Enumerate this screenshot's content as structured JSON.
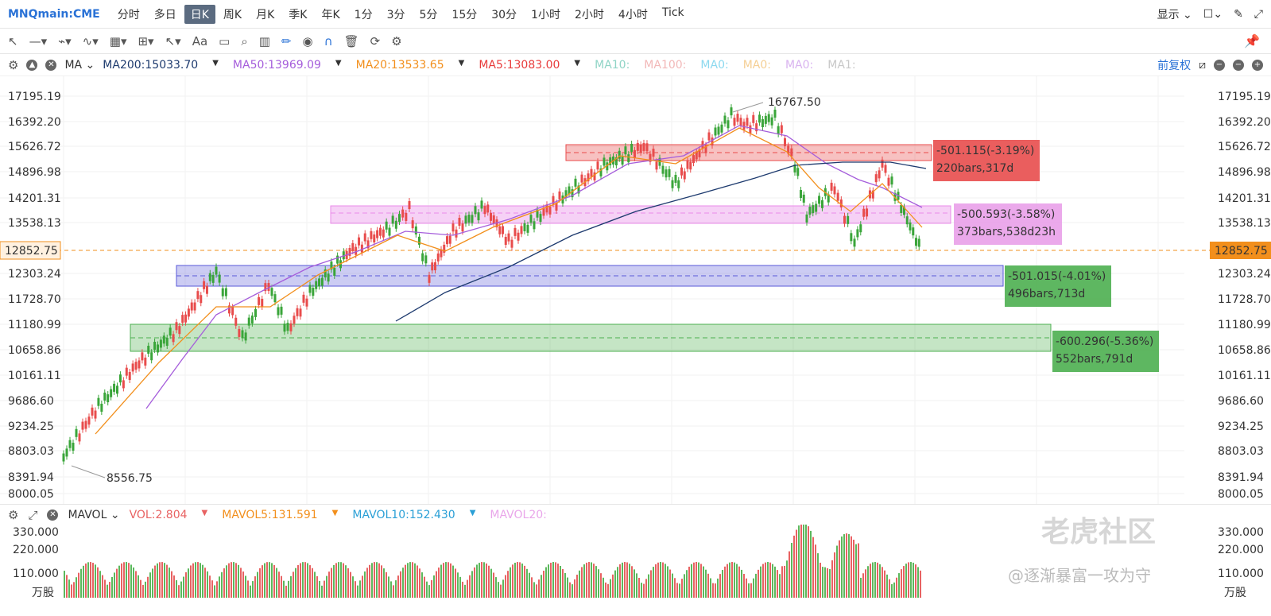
{
  "header": {
    "symbol": "MNQmain:CME",
    "periods": [
      "分时",
      "多日",
      "日K",
      "周K",
      "月K",
      "季K",
      "年K",
      "1分",
      "3分",
      "5分",
      "15分",
      "30分",
      "1小时",
      "2小时",
      "4小时",
      "Tick"
    ],
    "active_period": "日K",
    "display_label": "显示"
  },
  "ma": {
    "label": "MA",
    "items": [
      {
        "text": "MA200:15033.70",
        "color": "#1d3a6e",
        "arrow": "▼"
      },
      {
        "text": "MA50:13969.09",
        "color": "#a55ddb",
        "arrow": "▼"
      },
      {
        "text": "MA20:13533.65",
        "color": "#f28f1c",
        "arrow": "▼"
      },
      {
        "text": "MA5:13083.00",
        "color": "#e83b3b",
        "arrow": "▼"
      },
      {
        "text": "MA10:",
        "color": "#8fd4c6",
        "arrow": ""
      },
      {
        "text": "MA100:",
        "color": "#f2b8b8",
        "arrow": ""
      },
      {
        "text": "MA0:",
        "color": "#8cd9ef",
        "arrow": ""
      },
      {
        "text": "MA0:",
        "color": "#f5cf94",
        "arrow": ""
      },
      {
        "text": "MA0:",
        "color": "#d9b3ef",
        "arrow": ""
      },
      {
        "text": "MA1:",
        "color": "#c8c8c8",
        "arrow": ""
      }
    ],
    "adjust_label": "前复权"
  },
  "price_axis": {
    "ticks": [
      "17195.19",
      "16392.20",
      "15626.72",
      "14896.98",
      "14201.31",
      "13538.13",
      "12303.24",
      "11728.70",
      "11180.99",
      "10658.86",
      "10161.11",
      "9686.60",
      "9234.25",
      "8803.03",
      "8391.94",
      "8000.05"
    ],
    "current": "12852.75"
  },
  "annotations": {
    "high": "16767.50",
    "low": "8556.75",
    "boxes": [
      {
        "line1": "-501.115(-3.19%)",
        "line2": "220bars,317d",
        "color": "#e84c4c"
      },
      {
        "line1": "-500.593(-3.58%)",
        "line2": "373bars,538d23h",
        "color": "#e98be9"
      },
      {
        "line1": "-501.015(-4.01%)",
        "line2": "496bars,713d",
        "color": "#4caf50"
      },
      {
        "line1": "-600.296(-5.36%)",
        "line2": "552bars,791d",
        "color": "#4caf50"
      }
    ]
  },
  "volume": {
    "label": "MAVOL",
    "items": [
      {
        "text": "VOL:2.804",
        "color": "#e86262",
        "arrow": "▼"
      },
      {
        "text": "MAVOL5:131.591",
        "color": "#f28f1c",
        "arrow": "▼"
      },
      {
        "text": "MAVOL10:152.430",
        "color": "#2a9fd6",
        "arrow": "▼"
      },
      {
        "text": "MAVOL20:",
        "color": "#e9a6ea",
        "arrow": ""
      }
    ],
    "ticks": [
      "330.000",
      "220.000",
      "110.000"
    ],
    "unit": "万股"
  },
  "watermarks": {
    "main": "老虎社区",
    "footer": "@逐渐暴富一攻为守"
  },
  "chart_data": {
    "type": "candlestick",
    "high_label": 16767.5,
    "low_label": 8556.75,
    "last": 12852.75,
    "ylim": [
      8000.05,
      17195.19
    ]
  }
}
